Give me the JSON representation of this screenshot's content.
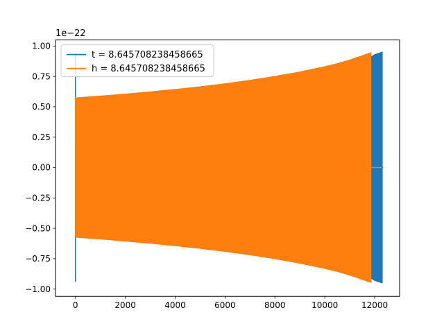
{
  "chart_data": {
    "type": "line",
    "title": "",
    "xlabel": "",
    "ylabel": "",
    "y_offset_label": "1e−22",
    "xlim": [
      -800,
      13000
    ],
    "ylim": [
      -1.06,
      1.05
    ],
    "x_ticks": [
      0,
      2000,
      4000,
      6000,
      8000,
      10000,
      12000
    ],
    "x_tick_labels": [
      "0",
      "2000",
      "4000",
      "6000",
      "8000",
      "10000",
      "12000"
    ],
    "y_ticks": [
      -1.0,
      -0.75,
      -0.5,
      -0.25,
      0.0,
      0.25,
      0.5,
      0.75,
      1.0
    ],
    "y_tick_labels": [
      "−1.00",
      "−0.75",
      "−0.50",
      "−0.25",
      "0.00",
      "0.25",
      "0.50",
      "0.75",
      "1.00"
    ],
    "grid": false,
    "legend_position": "top-left",
    "series": [
      {
        "name": "t = 8.645708238458665",
        "color": "#1f77b4",
        "note_shape": "spike near x=0 to ±0.94, blue band visible from ~11850 to 12300 reaching ±0.95",
        "points": [
          [
            0,
            -0.94
          ],
          [
            0,
            0.94
          ],
          [
            0,
            0.0
          ],
          [
            11850,
            -0.91
          ],
          [
            11850,
            0.91
          ],
          [
            12000,
            -0.93
          ],
          [
            12000,
            0.93
          ],
          [
            12150,
            -0.94
          ],
          [
            12150,
            0.94
          ],
          [
            12300,
            -0.95
          ],
          [
            12300,
            0.95
          ],
          [
            12300,
            0.0
          ]
        ]
      },
      {
        "name": "h = 8.645708238458665",
        "color": "#ff7f0e",
        "envelope_x": [
          0,
          100,
          1000,
          2000,
          3000,
          4000,
          5000,
          6000,
          7000,
          8000,
          9000,
          10000,
          10500,
          11000,
          11500,
          11850
        ],
        "envelope_y": [
          0.57,
          0.575,
          0.588,
          0.605,
          0.623,
          0.643,
          0.665,
          0.69,
          0.718,
          0.75,
          0.787,
          0.83,
          0.855,
          0.885,
          0.92,
          0.945
        ],
        "tail_x": [
          11850,
          12350
        ],
        "tail_y": 0.0
      }
    ]
  }
}
